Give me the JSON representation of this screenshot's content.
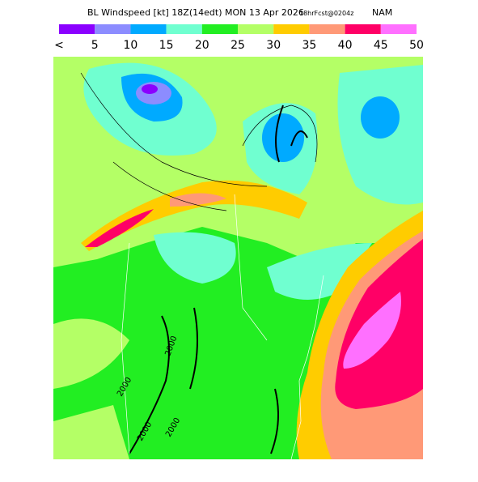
{
  "header": {
    "title": "BL Windspeed [kt] 18Z(14edt) MON 13 Apr 2026",
    "forecast": "18hrFcst@0204z",
    "model": "NAM"
  },
  "legend": {
    "colors": [
      "#8b00ff",
      "#8c8cff",
      "#00aaff",
      "#70ffd0",
      "#22ee22",
      "#b4ff66",
      "#ffcc00",
      "#ff9977",
      "#ff0066",
      "#ff70ff"
    ],
    "labels": [
      "<",
      "5",
      "10",
      "15",
      "20",
      "25",
      "30",
      "35",
      "40",
      "45",
      "50"
    ]
  },
  "map": {
    "contour_labels": [
      "2000",
      "2000",
      "2000",
      "2000"
    ]
  }
}
